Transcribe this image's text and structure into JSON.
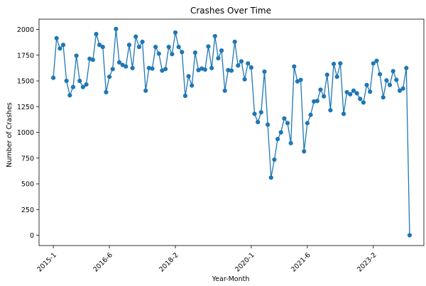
{
  "chart_data": {
    "type": "line",
    "title": "Crashes Over Time",
    "xlabel": "Year-Month",
    "ylabel": "Number of Crashes",
    "ylim": [
      -100,
      2100
    ],
    "yticks": [
      0,
      250,
      500,
      750,
      1000,
      1250,
      1500,
      1750,
      2000
    ],
    "xticks": [
      {
        "index": 0,
        "label": "2015-1"
      },
      {
        "index": 17,
        "label": "2016-6"
      },
      {
        "index": 37,
        "label": "2018-2"
      },
      {
        "index": 60,
        "label": "2020-1"
      },
      {
        "index": 77,
        "label": "2021-6"
      },
      {
        "index": 97,
        "label": "2023-2"
      }
    ],
    "grid": false,
    "series_color": "#1f77b4",
    "series": [
      {
        "values": [
          1530,
          1915,
          1815,
          1850,
          1500,
          1360,
          1440,
          1745,
          1500,
          1440,
          1465,
          1715,
          1705,
          1955,
          1850,
          1830,
          1390,
          1540,
          1615,
          2005,
          1680,
          1655,
          1640,
          1850,
          1625,
          1930,
          1830,
          1880,
          1405,
          1625,
          1620,
          1830,
          1765,
          1600,
          1615,
          1830,
          1760,
          1970,
          1830,
          1780,
          1355,
          1545,
          1455,
          1775,
          1605,
          1620,
          1610,
          1835,
          1625,
          1935,
          1720,
          1795,
          1405,
          1605,
          1600,
          1880,
          1650,
          1690,
          1515,
          1670,
          1630,
          1180,
          1100,
          1195,
          1590,
          1075,
          560,
          735,
          935,
          1000,
          1135,
          1090,
          895,
          1640,
          1495,
          1510,
          815,
          1090,
          1170,
          1300,
          1305,
          1415,
          1350,
          1560,
          1215,
          1665,
          1540,
          1670,
          1180,
          1390,
          1370,
          1405,
          1380,
          1325,
          1290,
          1460,
          1395,
          1670,
          1695,
          1565,
          1340,
          1505,
          1460,
          1595,
          1510,
          1405,
          1425,
          1625,
          0
        ]
      }
    ]
  }
}
